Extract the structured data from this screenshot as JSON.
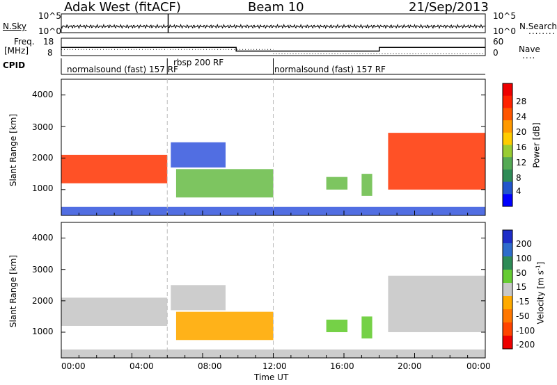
{
  "header": {
    "radar": "Adak West (fitACF)",
    "beam": "Beam 10",
    "date": "21/Sep/2013"
  },
  "side_labels": {
    "nsky": "N.Sky",
    "nsearch": "N.Search",
    "nsearch_dots": "........",
    "freq": "Freq.",
    "mhz": "[MHz]",
    "nave": "Nave",
    "nave_dots": "....",
    "cpid": "CPID"
  },
  "noise_panel": {
    "yticks_left": [
      "10^5",
      "10^0"
    ],
    "yticks_right": [
      "10^5",
      "10^0"
    ]
  },
  "freq_panel": {
    "yticks_left": [
      "18",
      "8"
    ],
    "yticks_right": [
      "60",
      "0"
    ],
    "freq_steps": [
      {
        "t0": 0.0,
        "t1": 6.0,
        "v": 12.7
      },
      {
        "t0": 6.15,
        "t1": 9.9,
        "v": 12.7
      },
      {
        "t0": 9.9,
        "t1": 18.0,
        "v": 10.6
      },
      {
        "t0": 18.0,
        "t1": 24.0,
        "v": 12.7
      }
    ],
    "nave_steps": [
      {
        "t0": 0.0,
        "t1": 6.0,
        "v": 21
      },
      {
        "t0": 6.15,
        "t1": 12.0,
        "v": 21
      },
      {
        "t0": 12.0,
        "t1": 24.0,
        "v": 6
      }
    ]
  },
  "cpid_panel": {
    "segments": [
      {
        "label": "normalsound (fast) 157 RF",
        "t0": 0.0,
        "t1": 6.0
      },
      {
        "label": "rbsp 200 RF",
        "t0": 6.0,
        "t1": 12.0
      },
      {
        "label": "normalsound (fast) 157 RF",
        "t0": 12.0,
        "t1": 24.0
      }
    ]
  },
  "time_axis": {
    "label": "Time UT",
    "ticks": [
      "00:00",
      "04:00",
      "08:00",
      "12:00",
      "16:00",
      "20:00",
      "00:00"
    ],
    "range_hours": [
      0,
      24
    ]
  },
  "range_axis": {
    "label": "Slant Range [km]",
    "ticks": [
      "1000",
      "2000",
      "3000",
      "4000"
    ],
    "range_km": [
      180,
      4500
    ]
  },
  "power_colorbar": {
    "label": "Power [dB]",
    "ticks": [
      "4",
      "8",
      "12",
      "16",
      "20",
      "24",
      "28"
    ],
    "range": [
      0,
      32
    ],
    "colors": [
      "#0000ff",
      "#2255cc",
      "#2e8b57",
      "#55aa55",
      "#99cc33",
      "#ffcc00",
      "#ff9900",
      "#ff5500",
      "#ff2200",
      "#ee0000"
    ]
  },
  "velocity_colorbar": {
    "label": "Velocity [m s",
    "label_sup": "-1",
    "label_end": "]",
    "ticks": [
      "200",
      "100",
      "50",
      "15",
      "-15",
      "-50",
      "-100",
      "-200"
    ],
    "colors": [
      "#1e2dc8",
      "#2e6ccc",
      "#2e8b57",
      "#66cc33",
      "#c8c8c8",
      "#ffaa00",
      "#ff7700",
      "#ff4400",
      "#ee0000"
    ]
  },
  "chart_data": {
    "type": "heatmap",
    "title": "Adak West (fitACF)  Beam 10  21/Sep/2013",
    "xlabel": "Time UT",
    "ylabel": "Slant Range [km]",
    "xlim": [
      0,
      24
    ],
    "ylim": [
      180,
      4500
    ],
    "echo_regions": [
      {
        "name": "power_band_morning",
        "t0": 0.0,
        "t1": 6.0,
        "r0": 1200,
        "r1": 2100,
        "power": "high (20-28 dB)",
        "velocity": "-15 to 15"
      },
      {
        "name": "rbsp_band",
        "t0": 6.2,
        "t1": 9.3,
        "r0": 1700,
        "r1": 2500,
        "power": "low-mid",
        "velocity": "-15 to 15"
      },
      {
        "name": "rbsp_lower_echo",
        "t0": 6.5,
        "t1": 12.0,
        "r0": 750,
        "r1": 1650,
        "power": "mid (10-20 dB)",
        "velocity": "-50 to -15"
      },
      {
        "name": "patch_16h",
        "t0": 15.0,
        "t1": 16.2,
        "r0": 1000,
        "r1": 1400,
        "power": "mid",
        "velocity": "15 to 50"
      },
      {
        "name": "patch_17h",
        "t0": 17.0,
        "t1": 17.6,
        "r0": 800,
        "r1": 1500,
        "power": "mid",
        "velocity": "15 to 50"
      },
      {
        "name": "evening_band",
        "t0": 18.5,
        "t1": 24.0,
        "r0": 1000,
        "r1": 2800,
        "power": "high (20-28 dB)",
        "velocity": "-15 to 15"
      },
      {
        "name": "near_range_clutter",
        "t0": 0.0,
        "t1": 24.0,
        "r0": 180,
        "r1": 450,
        "power": "low",
        "velocity": "-15 to 50"
      }
    ]
  }
}
